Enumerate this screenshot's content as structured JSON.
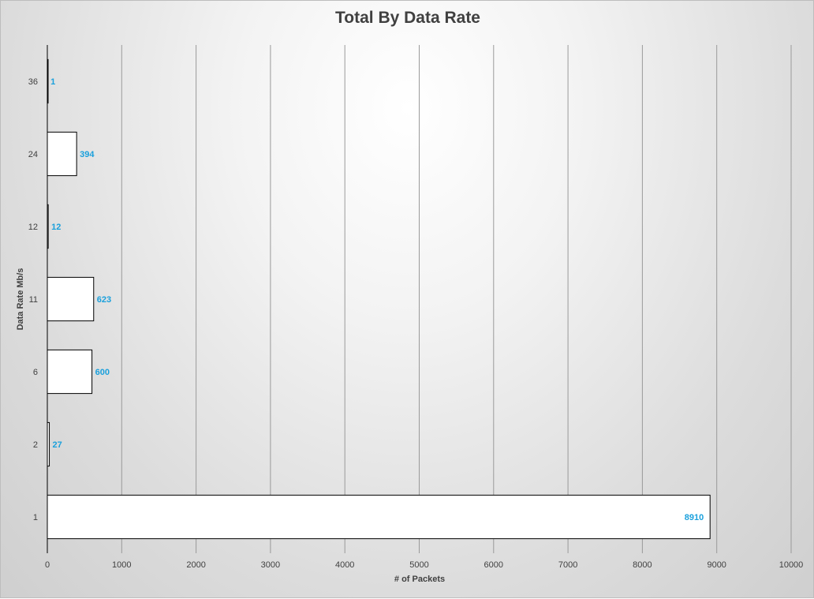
{
  "chart_data": {
    "type": "bar",
    "orientation": "horizontal",
    "title": "Total By Data Rate",
    "xlabel": "# of Packets",
    "ylabel": "Data Rate Mb/s",
    "categories": [
      "1",
      "2",
      "6",
      "11",
      "12",
      "24",
      "36"
    ],
    "values": [
      8910,
      27,
      600,
      623,
      12,
      394,
      1
    ],
    "data_labels": [
      "8910",
      "27",
      "600",
      "623",
      "12",
      "394",
      "1"
    ],
    "xlim": [
      0,
      10000
    ],
    "xticks": [
      0,
      1000,
      2000,
      3000,
      4000,
      5000,
      6000,
      7000,
      8000,
      9000,
      10000
    ],
    "grid": "vertical",
    "legend": "none",
    "colors": {
      "bar_fill": "#ffffff",
      "bar_stroke": "#000000",
      "data_label": "#1aa0dc",
      "grid": "#9a9a9a",
      "text": "#404040"
    }
  }
}
